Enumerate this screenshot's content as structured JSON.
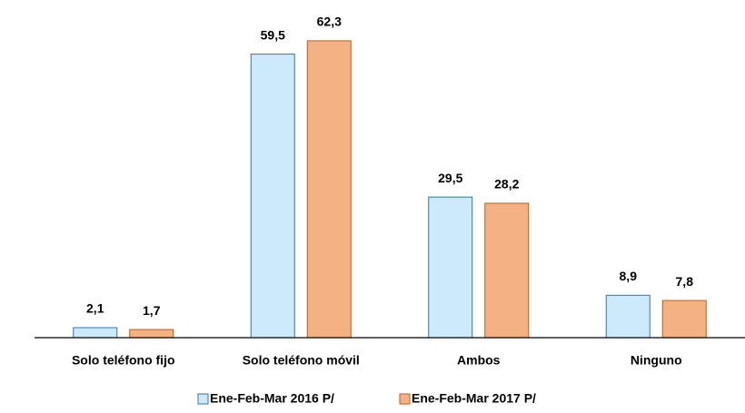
{
  "chart_data": {
    "type": "bar",
    "categories": [
      "Solo teléfono fijo",
      "Solo teléfono móvil",
      "Ambos",
      "Ninguno"
    ],
    "series": [
      {
        "name": "Ene-Feb-Mar 2016 P/",
        "color": "#cceaf9",
        "stroke": "#2f75b5",
        "values": [
          2.1,
          59.5,
          29.5,
          8.9
        ],
        "value_labels": [
          "2,1",
          "59,5",
          "29,5",
          "8,9"
        ]
      },
      {
        "name": "Ene-Feb-Mar 2017 P/",
        "color": "#f4b183",
        "stroke": "#c55a11",
        "values": [
          1.7,
          62.3,
          28.2,
          7.8
        ],
        "value_labels": [
          "1,7",
          "62,3",
          "28,2",
          "7,8"
        ]
      }
    ],
    "legend": "bottom"
  }
}
